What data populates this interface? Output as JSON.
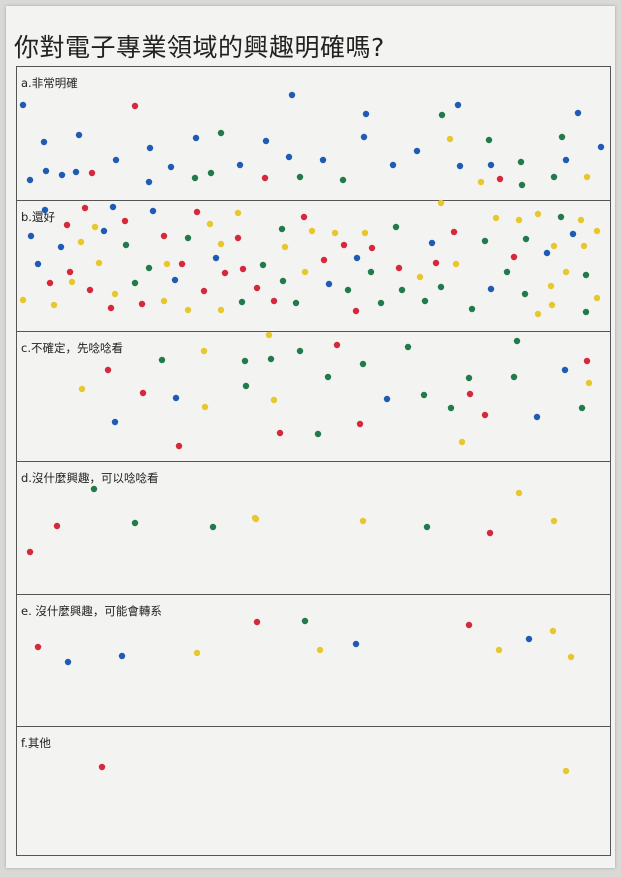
{
  "poster": {
    "title": "你對電子專業領域的興趣明確嗎?",
    "colors": {
      "blue": "#1e5bb5",
      "red": "#d6283a",
      "green": "#207a4c",
      "yellow": "#e6c72c"
    },
    "sections": [
      {
        "label": "a.非常明確",
        "dots": [
          [
            22,
            104,
            "b"
          ],
          [
            134,
            105,
            "r"
          ],
          [
            291,
            94,
            "b"
          ],
          [
            365,
            113,
            "b"
          ],
          [
            457,
            104,
            "b"
          ],
          [
            441,
            114,
            "g"
          ],
          [
            577,
            112,
            "b"
          ],
          [
            43,
            141,
            "b"
          ],
          [
            78,
            134,
            "b"
          ],
          [
            149,
            147,
            "b"
          ],
          [
            195,
            137,
            "b"
          ],
          [
            220,
            132,
            "g"
          ],
          [
            265,
            140,
            "b"
          ],
          [
            363,
            136,
            "b"
          ],
          [
            449,
            138,
            "y"
          ],
          [
            488,
            139,
            "g"
          ],
          [
            561,
            136,
            "g"
          ],
          [
            600,
            146,
            "b"
          ],
          [
            29,
            179,
            "b"
          ],
          [
            45,
            170,
            "b"
          ],
          [
            61,
            174,
            "b"
          ],
          [
            75,
            171,
            "b"
          ],
          [
            91,
            172,
            "r"
          ],
          [
            115,
            159,
            "b"
          ],
          [
            148,
            181,
            "b"
          ],
          [
            170,
            166,
            "b"
          ],
          [
            194,
            177,
            "g"
          ],
          [
            210,
            172,
            "g"
          ],
          [
            239,
            164,
            "b"
          ],
          [
            264,
            177,
            "r"
          ],
          [
            288,
            156,
            "b"
          ],
          [
            299,
            176,
            "g"
          ],
          [
            322,
            159,
            "b"
          ],
          [
            342,
            179,
            "g"
          ],
          [
            392,
            164,
            "b"
          ],
          [
            416,
            150,
            "b"
          ],
          [
            459,
            165,
            "b"
          ],
          [
            480,
            181,
            "y"
          ],
          [
            490,
            164,
            "b"
          ],
          [
            499,
            178,
            "r"
          ],
          [
            520,
            161,
            "g"
          ],
          [
            521,
            184,
            "g"
          ],
          [
            553,
            176,
            "g"
          ],
          [
            565,
            159,
            "b"
          ],
          [
            586,
            176,
            "y"
          ]
        ]
      },
      {
        "label": "b.還好",
        "dots": [
          [
            44,
            208,
            "b"
          ],
          [
            66,
            223,
            "r"
          ],
          [
            84,
            206,
            "r"
          ],
          [
            94,
            225,
            "y"
          ],
          [
            112,
            205,
            "b"
          ],
          [
            124,
            219,
            "r"
          ],
          [
            152,
            209,
            "b"
          ],
          [
            196,
            210,
            "r"
          ],
          [
            209,
            222,
            "y"
          ],
          [
            237,
            211,
            "y"
          ],
          [
            281,
            227,
            "g"
          ],
          [
            303,
            215,
            "r"
          ],
          [
            440,
            201,
            "y"
          ],
          [
            495,
            216,
            "y"
          ],
          [
            518,
            218,
            "y"
          ],
          [
            537,
            212,
            "y"
          ],
          [
            560,
            215,
            "g"
          ],
          [
            580,
            218,
            "y"
          ],
          [
            596,
            229,
            "y"
          ],
          [
            30,
            234,
            "b"
          ],
          [
            60,
            245,
            "b"
          ],
          [
            80,
            240,
            "y"
          ],
          [
            103,
            229,
            "b"
          ],
          [
            125,
            243,
            "g"
          ],
          [
            163,
            234,
            "r"
          ],
          [
            187,
            236,
            "g"
          ],
          [
            220,
            242,
            "y"
          ],
          [
            237,
            236,
            "r"
          ],
          [
            284,
            245,
            "y"
          ],
          [
            311,
            229,
            "y"
          ],
          [
            334,
            231,
            "y"
          ],
          [
            343,
            243,
            "r"
          ],
          [
            364,
            231,
            "y"
          ],
          [
            371,
            246,
            "r"
          ],
          [
            395,
            225,
            "g"
          ],
          [
            431,
            241,
            "b"
          ],
          [
            453,
            230,
            "r"
          ],
          [
            484,
            239,
            "g"
          ],
          [
            525,
            237,
            "g"
          ],
          [
            553,
            244,
            "y"
          ],
          [
            572,
            232,
            "b"
          ],
          [
            583,
            244,
            "y"
          ],
          [
            37,
            262,
            "b"
          ],
          [
            69,
            270,
            "r"
          ],
          [
            98,
            261,
            "y"
          ],
          [
            148,
            266,
            "g"
          ],
          [
            166,
            262,
            "y"
          ],
          [
            181,
            262,
            "r"
          ],
          [
            215,
            256,
            "b"
          ],
          [
            224,
            271,
            "r"
          ],
          [
            242,
            267,
            "r"
          ],
          [
            262,
            263,
            "g"
          ],
          [
            304,
            270,
            "y"
          ],
          [
            323,
            258,
            "r"
          ],
          [
            356,
            256,
            "b"
          ],
          [
            370,
            270,
            "g"
          ],
          [
            398,
            266,
            "r"
          ],
          [
            419,
            275,
            "y"
          ],
          [
            435,
            261,
            "r"
          ],
          [
            455,
            262,
            "y"
          ],
          [
            513,
            255,
            "r"
          ],
          [
            506,
            270,
            "g"
          ],
          [
            546,
            251,
            "b"
          ],
          [
            565,
            270,
            "y"
          ],
          [
            585,
            273,
            "g"
          ],
          [
            49,
            281,
            "r"
          ],
          [
            71,
            280,
            "y"
          ],
          [
            89,
            288,
            "r"
          ],
          [
            114,
            292,
            "y"
          ],
          [
            134,
            281,
            "g"
          ],
          [
            174,
            278,
            "b"
          ],
          [
            203,
            289,
            "r"
          ],
          [
            256,
            286,
            "r"
          ],
          [
            282,
            279,
            "g"
          ],
          [
            328,
            282,
            "b"
          ],
          [
            347,
            288,
            "g"
          ],
          [
            401,
            288,
            "g"
          ],
          [
            440,
            285,
            "g"
          ],
          [
            490,
            287,
            "b"
          ],
          [
            524,
            292,
            "g"
          ],
          [
            550,
            284,
            "y"
          ],
          [
            596,
            296,
            "y"
          ],
          [
            22,
            298,
            "y"
          ],
          [
            53,
            303,
            "y"
          ],
          [
            110,
            306,
            "r"
          ],
          [
            141,
            302,
            "r"
          ],
          [
            163,
            299,
            "y"
          ],
          [
            187,
            308,
            "y"
          ],
          [
            220,
            308,
            "y"
          ],
          [
            241,
            300,
            "g"
          ],
          [
            273,
            299,
            "r"
          ],
          [
            295,
            301,
            "g"
          ],
          [
            355,
            309,
            "r"
          ],
          [
            380,
            301,
            "g"
          ],
          [
            424,
            299,
            "g"
          ],
          [
            471,
            307,
            "g"
          ],
          [
            537,
            312,
            "y"
          ],
          [
            551,
            303,
            "y"
          ],
          [
            585,
            310,
            "g"
          ]
        ]
      },
      {
        "label": "c.不確定，先唸唸看",
        "dots": [
          [
            268,
            333,
            "y"
          ],
          [
            516,
            339,
            "g"
          ],
          [
            161,
            358,
            "g"
          ],
          [
            203,
            349,
            "y"
          ],
          [
            244,
            359,
            "g"
          ],
          [
            270,
            357,
            "g"
          ],
          [
            299,
            349,
            "g"
          ],
          [
            336,
            343,
            "r"
          ],
          [
            362,
            362,
            "g"
          ],
          [
            407,
            345,
            "g"
          ],
          [
            107,
            368,
            "r"
          ],
          [
            327,
            375,
            "g"
          ],
          [
            468,
            376,
            "g"
          ],
          [
            513,
            375,
            "g"
          ],
          [
            564,
            368,
            "b"
          ],
          [
            586,
            359,
            "r"
          ],
          [
            588,
            381,
            "y"
          ],
          [
            81,
            387,
            "y"
          ],
          [
            142,
            391,
            "r"
          ],
          [
            175,
            396,
            "b"
          ],
          [
            245,
            384,
            "g"
          ],
          [
            273,
            398,
            "y"
          ],
          [
            386,
            397,
            "b"
          ],
          [
            423,
            393,
            "g"
          ],
          [
            450,
            406,
            "g"
          ],
          [
            469,
            392,
            "r"
          ],
          [
            204,
            405,
            "y"
          ],
          [
            114,
            420,
            "b"
          ],
          [
            484,
            413,
            "r"
          ],
          [
            536,
            415,
            "b"
          ],
          [
            581,
            406,
            "g"
          ],
          [
            279,
            431,
            "r"
          ],
          [
            317,
            432,
            "g"
          ],
          [
            359,
            422,
            "r"
          ],
          [
            178,
            444,
            "r"
          ],
          [
            461,
            440,
            "y"
          ]
        ]
      },
      {
        "label": "d.沒什麼興趣，可以唸唸看",
        "dots": [
          [
            93,
            487,
            "g"
          ],
          [
            518,
            491,
            "y"
          ],
          [
            56,
            524,
            "r"
          ],
          [
            134,
            521,
            "g"
          ],
          [
            212,
            525,
            "g"
          ],
          [
            254,
            516,
            "y"
          ],
          [
            255,
            517,
            "y"
          ],
          [
            362,
            519,
            "y"
          ],
          [
            426,
            525,
            "g"
          ],
          [
            489,
            531,
            "r"
          ],
          [
            553,
            519,
            "y"
          ],
          [
            29,
            550,
            "r"
          ]
        ]
      },
      {
        "label": "e. 沒什麼興趣，可能會轉系",
        "dots": [
          [
            256,
            620,
            "r"
          ],
          [
            304,
            619,
            "g"
          ],
          [
            468,
            623,
            "r"
          ],
          [
            552,
            629,
            "y"
          ],
          [
            528,
            637,
            "b"
          ],
          [
            355,
            642,
            "b"
          ],
          [
            37,
            645,
            "r"
          ],
          [
            319,
            648,
            "y"
          ],
          [
            498,
            648,
            "y"
          ],
          [
            67,
            660,
            "b"
          ],
          [
            121,
            654,
            "b"
          ],
          [
            196,
            651,
            "y"
          ],
          [
            570,
            655,
            "y"
          ]
        ]
      },
      {
        "label": "f.其他",
        "dots": [
          [
            101,
            765,
            "r"
          ],
          [
            565,
            769,
            "y"
          ]
        ]
      }
    ]
  }
}
